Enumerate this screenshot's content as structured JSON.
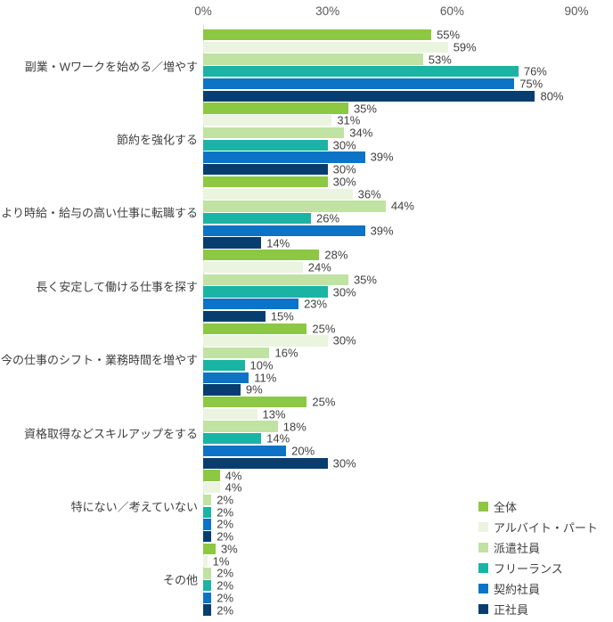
{
  "chart_data": {
    "type": "bar",
    "orientation": "horizontal",
    "title": "",
    "axis": {
      "ticks": [
        "0%",
        "30%",
        "60%",
        "90%"
      ],
      "tick_values": [
        0,
        30,
        60,
        90
      ],
      "xlim": [
        0,
        90
      ],
      "unit": "%"
    },
    "grid": false,
    "value_suffix": "%",
    "legend_position": "bottom-right",
    "categories": [
      "副業・Wワークを始める／増やす",
      "節約を強化する",
      "より時給・給与の高い仕事に転職する",
      "長く安定して働ける仕事を探す",
      "今の仕事のシフト・業務時間を増やす",
      "資格取得などスキルアップをする",
      "特にない／考えていない",
      "その他"
    ],
    "series": [
      {
        "name": "全体",
        "color": "#8cc841",
        "values": [
          55,
          35,
          30,
          28,
          25,
          25,
          4,
          3
        ]
      },
      {
        "name": "アルバイト・パート",
        "color": "#eaf4df",
        "values": [
          59,
          31,
          36,
          24,
          30,
          13,
          4,
          1
        ]
      },
      {
        "name": "派遣社員",
        "color": "#c0e2a2",
        "values": [
          53,
          34,
          44,
          35,
          16,
          18,
          2,
          2
        ]
      },
      {
        "name": "フリーランス",
        "color": "#1bb3a3",
        "values": [
          76,
          30,
          26,
          30,
          10,
          14,
          2,
          2
        ]
      },
      {
        "name": "契約社員",
        "color": "#0d73c6",
        "values": [
          75,
          39,
          39,
          23,
          11,
          20,
          2,
          2
        ]
      },
      {
        "name": "正社員",
        "color": "#083e6f",
        "values": [
          80,
          30,
          14,
          15,
          9,
          30,
          2,
          2
        ]
      }
    ]
  },
  "colors": {
    "background": "#ffffff",
    "axis_label": "#595959",
    "category_label": "#404040",
    "value_label": "#404040",
    "baseline": "#d9d9d9"
  }
}
